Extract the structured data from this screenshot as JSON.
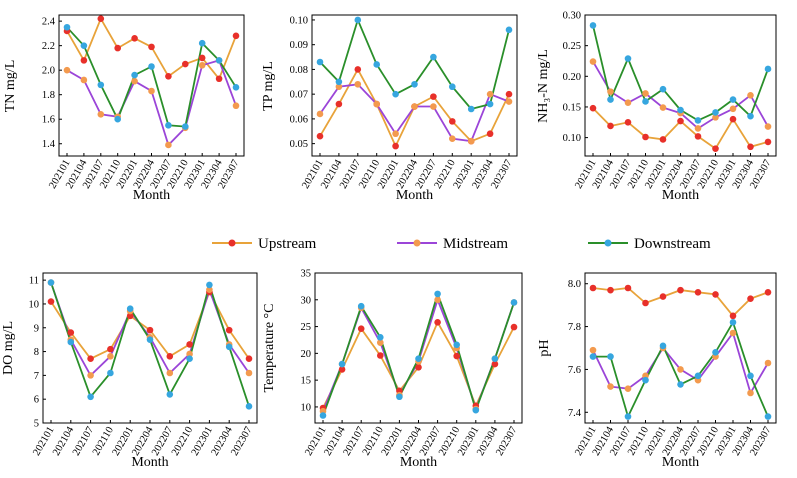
{
  "colors": {
    "Upstream": {
      "line": "#E8A33A",
      "marker": "#E8302A"
    },
    "Midstream": {
      "line": "#9B45D8",
      "marker": "#F39A4E"
    },
    "Downstream": {
      "line": "#2A8F2A",
      "marker": "#36A6DF"
    }
  },
  "legend": {
    "placement": "center",
    "entries": [
      "Upstream",
      "Midstream",
      "Downstream"
    ]
  },
  "chart_data": [
    {
      "type": "line",
      "ylabel": "TN mg/L",
      "xlabel": "Month",
      "categories": [
        "202101",
        "202104",
        "202107",
        "202110",
        "202201",
        "202204",
        "202207",
        "202210",
        "202301",
        "202304",
        "202307"
      ],
      "ylim": [
        1.3,
        2.45
      ],
      "yticks": [
        "1.4",
        "1.6",
        "1.8",
        "2.0",
        "2.2",
        "2.4"
      ],
      "ytick_values": [
        1.4,
        1.6,
        1.8,
        2.0,
        2.2,
        2.4
      ],
      "series": [
        {
          "name": "Upstream",
          "values": [
            2.32,
            2.08,
            2.42,
            2.18,
            2.26,
            2.19,
            1.95,
            2.05,
            2.1,
            1.93,
            2.28
          ]
        },
        {
          "name": "Midstream",
          "values": [
            2.0,
            1.92,
            1.64,
            1.62,
            1.91,
            1.83,
            1.39,
            1.53,
            2.04,
            2.08,
            1.71
          ]
        },
        {
          "name": "Downstream",
          "values": [
            2.35,
            2.2,
            1.88,
            1.6,
            1.96,
            2.03,
            1.55,
            1.54,
            2.22,
            2.08,
            1.86
          ]
        }
      ]
    },
    {
      "type": "line",
      "ylabel": "TP mg/L",
      "xlabel": "Month",
      "categories": [
        "202101",
        "202104",
        "202107",
        "202110",
        "202201",
        "202204",
        "202207",
        "202210",
        "202301",
        "202304",
        "202307"
      ],
      "ylim": [
        0.045,
        0.102
      ],
      "yticks": [
        "0.05",
        "0.06",
        "0.07",
        "0.08",
        "0.09",
        "0.10"
      ],
      "ytick_values": [
        0.05,
        0.06,
        0.07,
        0.08,
        0.09,
        0.1
      ],
      "series": [
        {
          "name": "Upstream",
          "values": [
            0.053,
            0.066,
            0.08,
            0.066,
            0.049,
            0.065,
            0.069,
            0.059,
            0.051,
            0.054,
            0.07
          ]
        },
        {
          "name": "Midstream",
          "values": [
            0.062,
            0.073,
            0.074,
            0.066,
            0.054,
            0.065,
            0.065,
            0.052,
            0.051,
            0.07,
            0.067
          ]
        },
        {
          "name": "Downstream",
          "values": [
            0.083,
            0.075,
            0.1,
            0.082,
            0.07,
            0.074,
            0.085,
            0.073,
            0.064,
            0.066,
            0.096
          ]
        }
      ]
    },
    {
      "type": "line",
      "ylabel": "NH₃-N mg/L",
      "xlabel": "Month",
      "categories": [
        "202101",
        "202104",
        "202107",
        "202110",
        "202201",
        "202204",
        "202207",
        "202210",
        "202301",
        "202304",
        "202307"
      ],
      "ylim": [
        0.07,
        0.3
      ],
      "yticks": [
        "0.10",
        "0.15",
        "0.20",
        "0.25",
        "0.30"
      ],
      "ytick_values": [
        0.1,
        0.15,
        0.2,
        0.25,
        0.3
      ],
      "series": [
        {
          "name": "Upstream",
          "values": [
            0.148,
            0.119,
            0.125,
            0.101,
            0.097,
            0.127,
            0.102,
            0.082,
            0.13,
            0.085,
            0.093
          ]
        },
        {
          "name": "Midstream",
          "values": [
            0.224,
            0.175,
            0.157,
            0.172,
            0.149,
            0.14,
            0.115,
            0.133,
            0.147,
            0.169,
            0.118
          ]
        },
        {
          "name": "Downstream",
          "values": [
            0.283,
            0.162,
            0.229,
            0.159,
            0.179,
            0.145,
            0.128,
            0.141,
            0.162,
            0.135,
            0.212
          ]
        }
      ]
    },
    {
      "type": "line",
      "ylabel": "DO mg/L",
      "xlabel": "Month",
      "categories": [
        "202101",
        "202104",
        "202107",
        "202110",
        "202201",
        "202204",
        "202207",
        "202210",
        "202301",
        "202304",
        "202307"
      ],
      "ylim": [
        5,
        11.3
      ],
      "yticks": [
        "5",
        "6",
        "7",
        "8",
        "9",
        "10",
        "11"
      ],
      "ytick_values": [
        5,
        6,
        7,
        8,
        9,
        10,
        11
      ],
      "series": [
        {
          "name": "Upstream",
          "values": [
            10.1,
            8.8,
            7.7,
            8.1,
            9.5,
            8.9,
            7.8,
            8.3,
            10.5,
            8.9,
            7.7
          ]
        },
        {
          "name": "Midstream",
          "values": [
            10.9,
            8.5,
            7.0,
            7.8,
            9.7,
            8.6,
            7.1,
            7.9,
            10.6,
            8.3,
            7.1
          ]
        },
        {
          "name": "Downstream",
          "values": [
            10.9,
            8.4,
            6.1,
            7.1,
            9.8,
            8.5,
            6.2,
            7.7,
            10.8,
            8.2,
            5.7
          ]
        }
      ]
    },
    {
      "type": "line",
      "ylabel": "Temperature °C",
      "xlabel": "Month",
      "categories": [
        "202101",
        "202104",
        "202107",
        "202110",
        "202201",
        "202204",
        "202207",
        "202210",
        "202301",
        "202304",
        "202307"
      ],
      "ylim": [
        7,
        35
      ],
      "yticks": [
        "10",
        "15",
        "20",
        "25",
        "30",
        "35"
      ],
      "ytick_values": [
        10,
        15,
        20,
        25,
        30,
        35
      ],
      "series": [
        {
          "name": "Upstream",
          "values": [
            9.8,
            17.0,
            24.6,
            19.6,
            13.0,
            17.4,
            25.8,
            19.5,
            10.2,
            18.0,
            24.9
          ]
        },
        {
          "name": "Midstream",
          "values": [
            9.2,
            18.0,
            28.5,
            22.0,
            12.2,
            18.5,
            30.0,
            21.0,
            9.6,
            19.0,
            29.5
          ]
        },
        {
          "name": "Downstream",
          "values": [
            8.4,
            18.0,
            28.8,
            23.0,
            11.9,
            19.0,
            31.1,
            21.6,
            9.4,
            19.0,
            29.5
          ]
        }
      ]
    },
    {
      "type": "line",
      "ylabel": "pH",
      "xlabel": "Month",
      "categories": [
        "202101",
        "202104",
        "202107",
        "202110",
        "202201",
        "202204",
        "202207",
        "202210",
        "202301",
        "202304",
        "202307"
      ],
      "ylim": [
        7.35,
        8.05
      ],
      "yticks": [
        "7.4",
        "7.6",
        "7.8",
        "8.0"
      ],
      "ytick_values": [
        7.4,
        7.6,
        7.8,
        8.0
      ],
      "series": [
        {
          "name": "Upstream",
          "values": [
            7.98,
            7.97,
            7.98,
            7.91,
            7.94,
            7.97,
            7.96,
            7.95,
            7.85,
            7.93,
            7.96
          ]
        },
        {
          "name": "Midstream",
          "values": [
            7.69,
            7.52,
            7.51,
            7.57,
            7.7,
            7.6,
            7.55,
            7.66,
            7.77,
            7.49,
            7.63
          ]
        },
        {
          "name": "Downstream",
          "values": [
            7.66,
            7.66,
            7.38,
            7.55,
            7.71,
            7.53,
            7.57,
            7.68,
            7.82,
            7.57,
            7.38
          ]
        }
      ]
    }
  ]
}
